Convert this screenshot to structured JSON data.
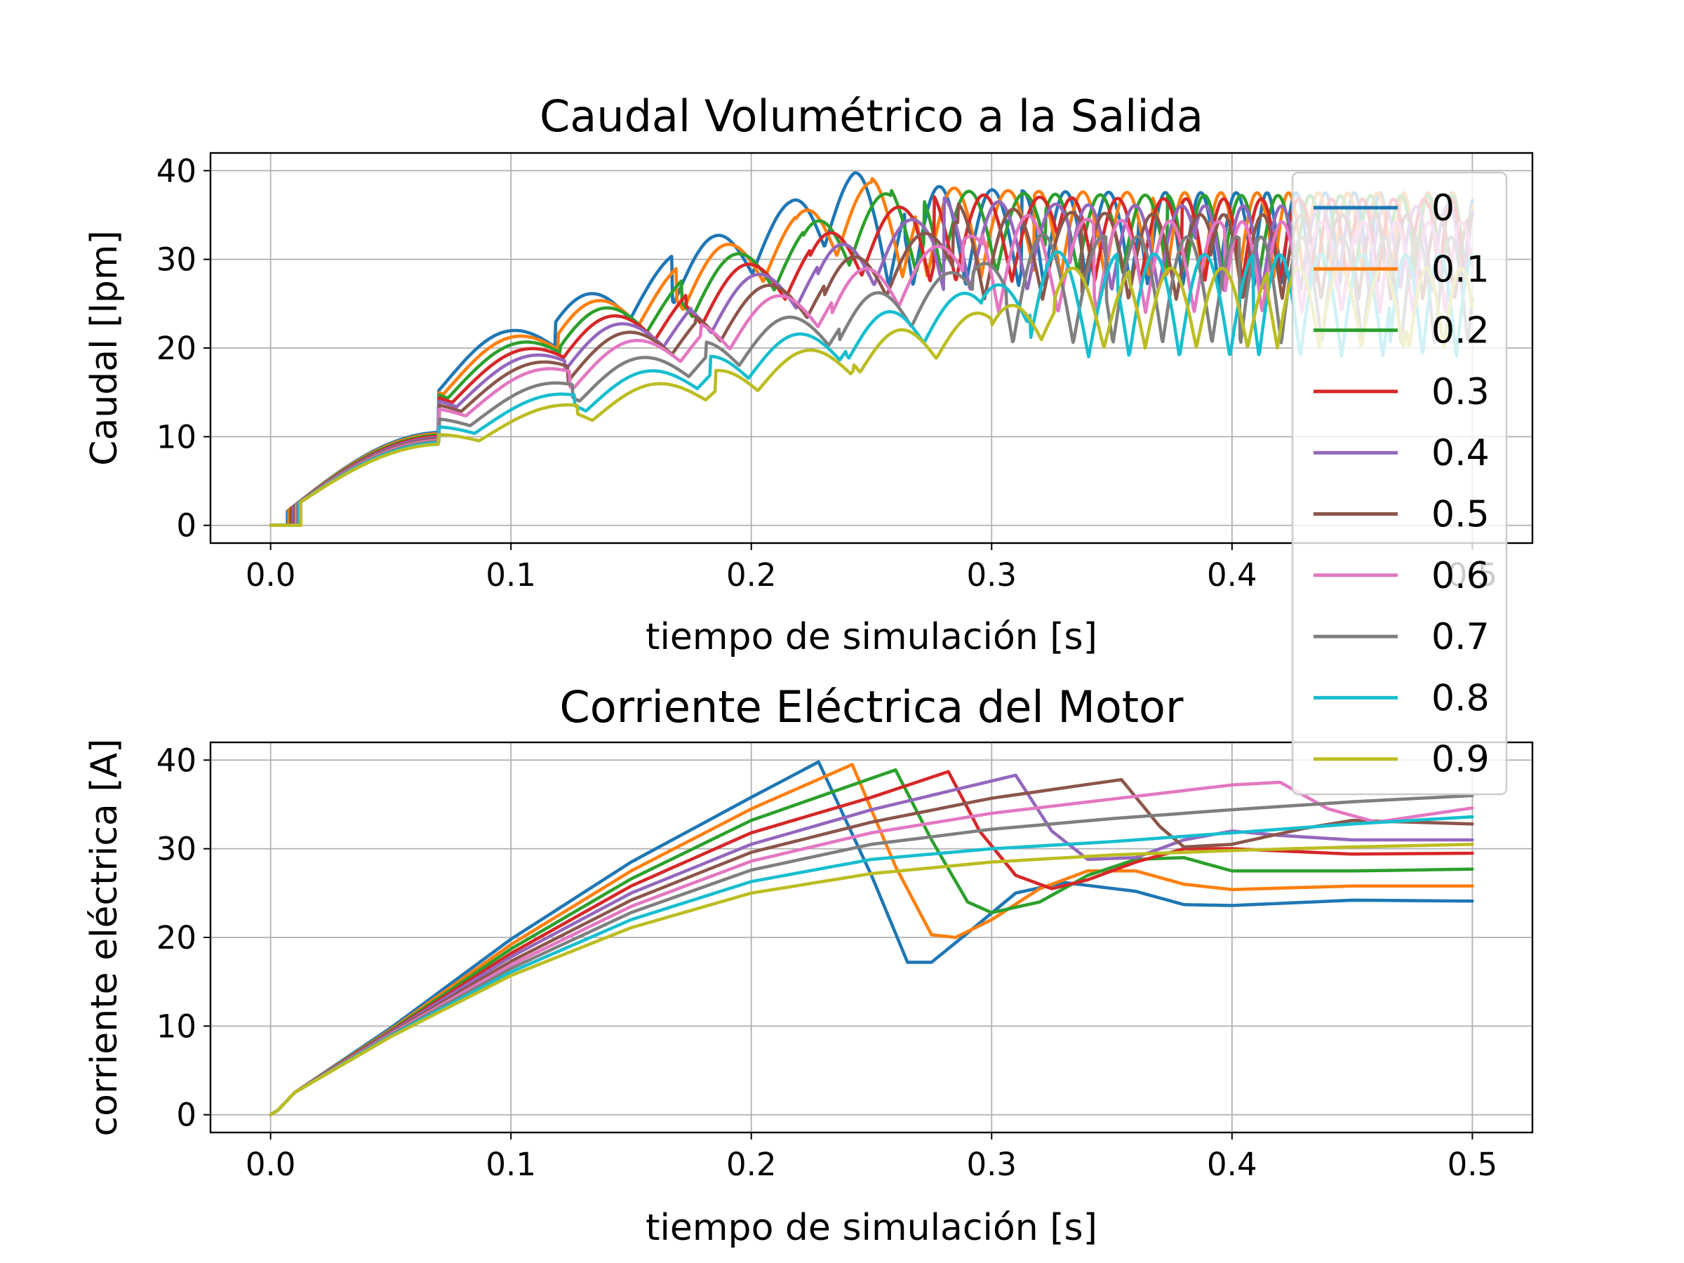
{
  "chart_data": [
    {
      "type": "line",
      "title": "Caudal Volumétrico a la Salida",
      "xlabel": "tiempo de simulación [s]",
      "ylabel": "Caudal [lpm]",
      "xlim": [
        -0.025,
        0.525
      ],
      "ylim": [
        -2,
        42
      ],
      "xticks": [
        "0.0",
        "0.1",
        "0.2",
        "0.3",
        "0.4",
        "0.5"
      ],
      "yticks": [
        "0",
        "10",
        "20",
        "30",
        "40"
      ],
      "grid": true,
      "legend": "upper-right",
      "series": [
        {
          "name": "0",
          "color": "#1f77b4",
          "onset": 0.007,
          "spacing": 0.0485,
          "peak_time": 0.243,
          "peak_value": 39.8,
          "steady_max": 37.5,
          "steady_min": 27.0
        },
        {
          "name": "0.1",
          "color": "#ff7f0e",
          "onset": 0.007,
          "spacing": 0.0495,
          "peak_time": 0.25,
          "peak_value": 39.2,
          "steady_max": 37.5,
          "steady_min": 28.0
        },
        {
          "name": "0.2",
          "color": "#2ca02c",
          "onset": 0.007,
          "spacing": 0.0505,
          "peak_time": 0.258,
          "peak_value": 38.6,
          "steady_max": 37.2,
          "steady_min": 28.5
        },
        {
          "name": "0.3",
          "color": "#d62728",
          "onset": 0.007,
          "spacing": 0.0515,
          "peak_time": 0.268,
          "peak_value": 38.0,
          "steady_max": 36.8,
          "steady_min": 27.5
        },
        {
          "name": "0.4",
          "color": "#9467bd",
          "onset": 0.007,
          "spacing": 0.0525,
          "peak_time": 0.276,
          "peak_value": 37.2,
          "steady_max": 36.0,
          "steady_min": 26.5
        },
        {
          "name": "0.5",
          "color": "#8c564b",
          "onset": 0.007,
          "spacing": 0.0535,
          "peak_time": 0.286,
          "peak_value": 36.4,
          "steady_max": 35.0,
          "steady_min": 25.5
        },
        {
          "name": "0.6",
          "color": "#e377c2",
          "onset": 0.007,
          "spacing": 0.0545,
          "peak_time": 0.296,
          "peak_value": 35.6,
          "steady_max": 34.2,
          "steady_min": 24.0
        },
        {
          "name": "0.7",
          "color": "#7f7f7f",
          "onset": 0.007,
          "spacing": 0.0555,
          "peak_time": 0.306,
          "peak_value": 33.0,
          "steady_max": 32.5,
          "steady_min": 20.5
        },
        {
          "name": "0.8",
          "color": "#17becf",
          "onset": 0.007,
          "spacing": 0.0565,
          "peak_time": 0.316,
          "peak_value": 31.0,
          "steady_max": 30.5,
          "steady_min": 19.0
        },
        {
          "name": "0.9",
          "color": "#bcbd22",
          "onset": 0.007,
          "spacing": 0.0575,
          "peak_time": 0.326,
          "peak_value": 29.0,
          "steady_max": 29.0,
          "steady_min": 20.0
        }
      ]
    },
    {
      "type": "line",
      "title": "Corriente Eléctrica del Motor",
      "xlabel": "tiempo de simulación [s]",
      "ylabel": "corriente eléctrica [A]",
      "xlim": [
        -0.025,
        0.525
      ],
      "ylim": [
        -2,
        42
      ],
      "xticks": [
        "0.0",
        "0.1",
        "0.2",
        "0.3",
        "0.4",
        "0.5"
      ],
      "yticks": [
        "0",
        "10",
        "20",
        "30",
        "40"
      ],
      "grid": true,
      "series": [
        {
          "name": "0",
          "color": "#1f77b4",
          "x": [
            0,
            0.003,
            0.01,
            0.05,
            0.1,
            0.15,
            0.2,
            0.228,
            0.25,
            0.265,
            0.275,
            0.29,
            0.31,
            0.33,
            0.36,
            0.38,
            0.4,
            0.45,
            0.5
          ],
          "y": [
            0,
            0.5,
            2.5,
            9.8,
            19.8,
            28.5,
            35.8,
            39.8,
            27.0,
            17.2,
            17.2,
            20.5,
            25.0,
            26.2,
            25.2,
            23.7,
            23.6,
            24.2,
            24.1
          ]
        },
        {
          "name": "0.1",
          "color": "#ff7f0e",
          "x": [
            0,
            0.003,
            0.01,
            0.05,
            0.1,
            0.15,
            0.2,
            0.242,
            0.26,
            0.275,
            0.285,
            0.3,
            0.32,
            0.34,
            0.36,
            0.38,
            0.4,
            0.45,
            0.5
          ],
          "y": [
            0,
            0.5,
            2.5,
            9.6,
            19.2,
            27.5,
            34.5,
            39.5,
            28.0,
            20.3,
            20.0,
            22.0,
            25.5,
            27.5,
            27.5,
            26.0,
            25.4,
            25.8,
            25.8
          ]
        },
        {
          "name": "0.2",
          "color": "#2ca02c",
          "x": [
            0,
            0.003,
            0.01,
            0.05,
            0.1,
            0.15,
            0.2,
            0.26,
            0.275,
            0.29,
            0.3,
            0.32,
            0.34,
            0.36,
            0.38,
            0.4,
            0.45,
            0.5
          ],
          "y": [
            0,
            0.5,
            2.5,
            9.5,
            18.7,
            26.6,
            33.2,
            38.9,
            31.0,
            24.0,
            22.8,
            24.0,
            27.0,
            28.8,
            29.0,
            27.5,
            27.5,
            27.7
          ]
        },
        {
          "name": "0.3",
          "color": "#d62728",
          "x": [
            0,
            0.003,
            0.01,
            0.05,
            0.1,
            0.15,
            0.2,
            0.25,
            0.282,
            0.295,
            0.31,
            0.325,
            0.34,
            0.36,
            0.38,
            0.4,
            0.45,
            0.5
          ],
          "y": [
            0,
            0.5,
            2.5,
            9.4,
            18.2,
            25.8,
            31.8,
            35.8,
            38.7,
            32.0,
            27.0,
            25.5,
            26.5,
            28.5,
            30.0,
            30.0,
            29.4,
            29.5
          ]
        },
        {
          "name": "0.4",
          "color": "#9467bd",
          "x": [
            0,
            0.003,
            0.01,
            0.05,
            0.1,
            0.15,
            0.2,
            0.25,
            0.31,
            0.325,
            0.34,
            0.36,
            0.38,
            0.4,
            0.42,
            0.45,
            0.5
          ],
          "y": [
            0,
            0.5,
            2.5,
            9.3,
            17.8,
            25.0,
            30.5,
            34.4,
            38.3,
            32.0,
            28.8,
            29.0,
            31.0,
            32.0,
            31.5,
            31.0,
            31.0
          ]
        },
        {
          "name": "0.5",
          "color": "#8c564b",
          "x": [
            0,
            0.003,
            0.01,
            0.05,
            0.1,
            0.15,
            0.2,
            0.25,
            0.3,
            0.354,
            0.37,
            0.38,
            0.4,
            0.43,
            0.45,
            0.5
          ],
          "y": [
            0,
            0.5,
            2.5,
            9.2,
            17.3,
            24.2,
            29.6,
            33.0,
            35.7,
            37.8,
            32.5,
            30.2,
            30.5,
            32.3,
            33.2,
            32.8
          ]
        },
        {
          "name": "0.6",
          "color": "#e377c2",
          "x": [
            0,
            0.003,
            0.01,
            0.05,
            0.1,
            0.15,
            0.2,
            0.25,
            0.3,
            0.35,
            0.4,
            0.42,
            0.44,
            0.46,
            0.48,
            0.5
          ],
          "y": [
            0,
            0.5,
            2.5,
            9.1,
            16.9,
            23.5,
            28.6,
            31.8,
            34.0,
            35.6,
            37.2,
            37.5,
            34.5,
            33.0,
            33.8,
            34.6
          ]
        },
        {
          "name": "0.7",
          "color": "#7f7f7f",
          "x": [
            0,
            0.003,
            0.01,
            0.05,
            0.1,
            0.15,
            0.2,
            0.25,
            0.3,
            0.35,
            0.4,
            0.45,
            0.5
          ],
          "y": [
            0,
            0.5,
            2.5,
            9.0,
            16.5,
            22.8,
            27.6,
            30.5,
            32.2,
            33.4,
            34.4,
            35.3,
            36.0
          ]
        },
        {
          "name": "0.8",
          "color": "#17becf",
          "x": [
            0,
            0.003,
            0.01,
            0.05,
            0.1,
            0.15,
            0.2,
            0.25,
            0.3,
            0.35,
            0.4,
            0.45,
            0.5
          ],
          "y": [
            0,
            0.5,
            2.5,
            8.9,
            16.1,
            22.0,
            26.3,
            28.8,
            30.0,
            30.8,
            31.8,
            32.8,
            33.6
          ]
        },
        {
          "name": "0.9",
          "color": "#bcbd22",
          "x": [
            0,
            0.003,
            0.01,
            0.05,
            0.1,
            0.15,
            0.2,
            0.25,
            0.3,
            0.35,
            0.4,
            0.45,
            0.5
          ],
          "y": [
            0,
            0.5,
            2.5,
            8.8,
            15.7,
            21.1,
            25.0,
            27.2,
            28.5,
            29.3,
            29.8,
            30.2,
            30.5
          ]
        }
      ]
    }
  ]
}
